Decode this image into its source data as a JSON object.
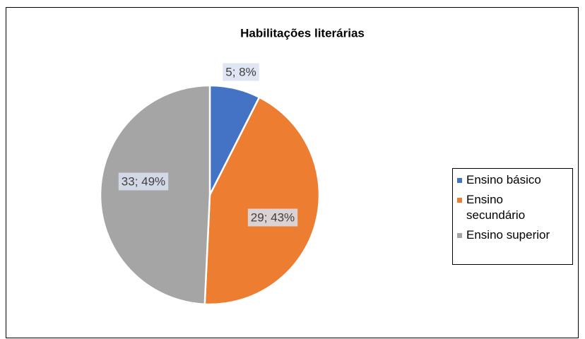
{
  "chart_data": {
    "type": "pie",
    "title": "Habilitações literárias",
    "categories": [
      "Ensino básico",
      "Ensino secundário",
      "Ensino superior"
    ],
    "values": [
      5,
      29,
      33
    ],
    "value_labels": [
      "5; 8%",
      "29; 43%",
      "33; 49%"
    ],
    "colors": [
      "#4472c4",
      "#ed7d31",
      "#a5a5a5"
    ],
    "legend": "right"
  }
}
